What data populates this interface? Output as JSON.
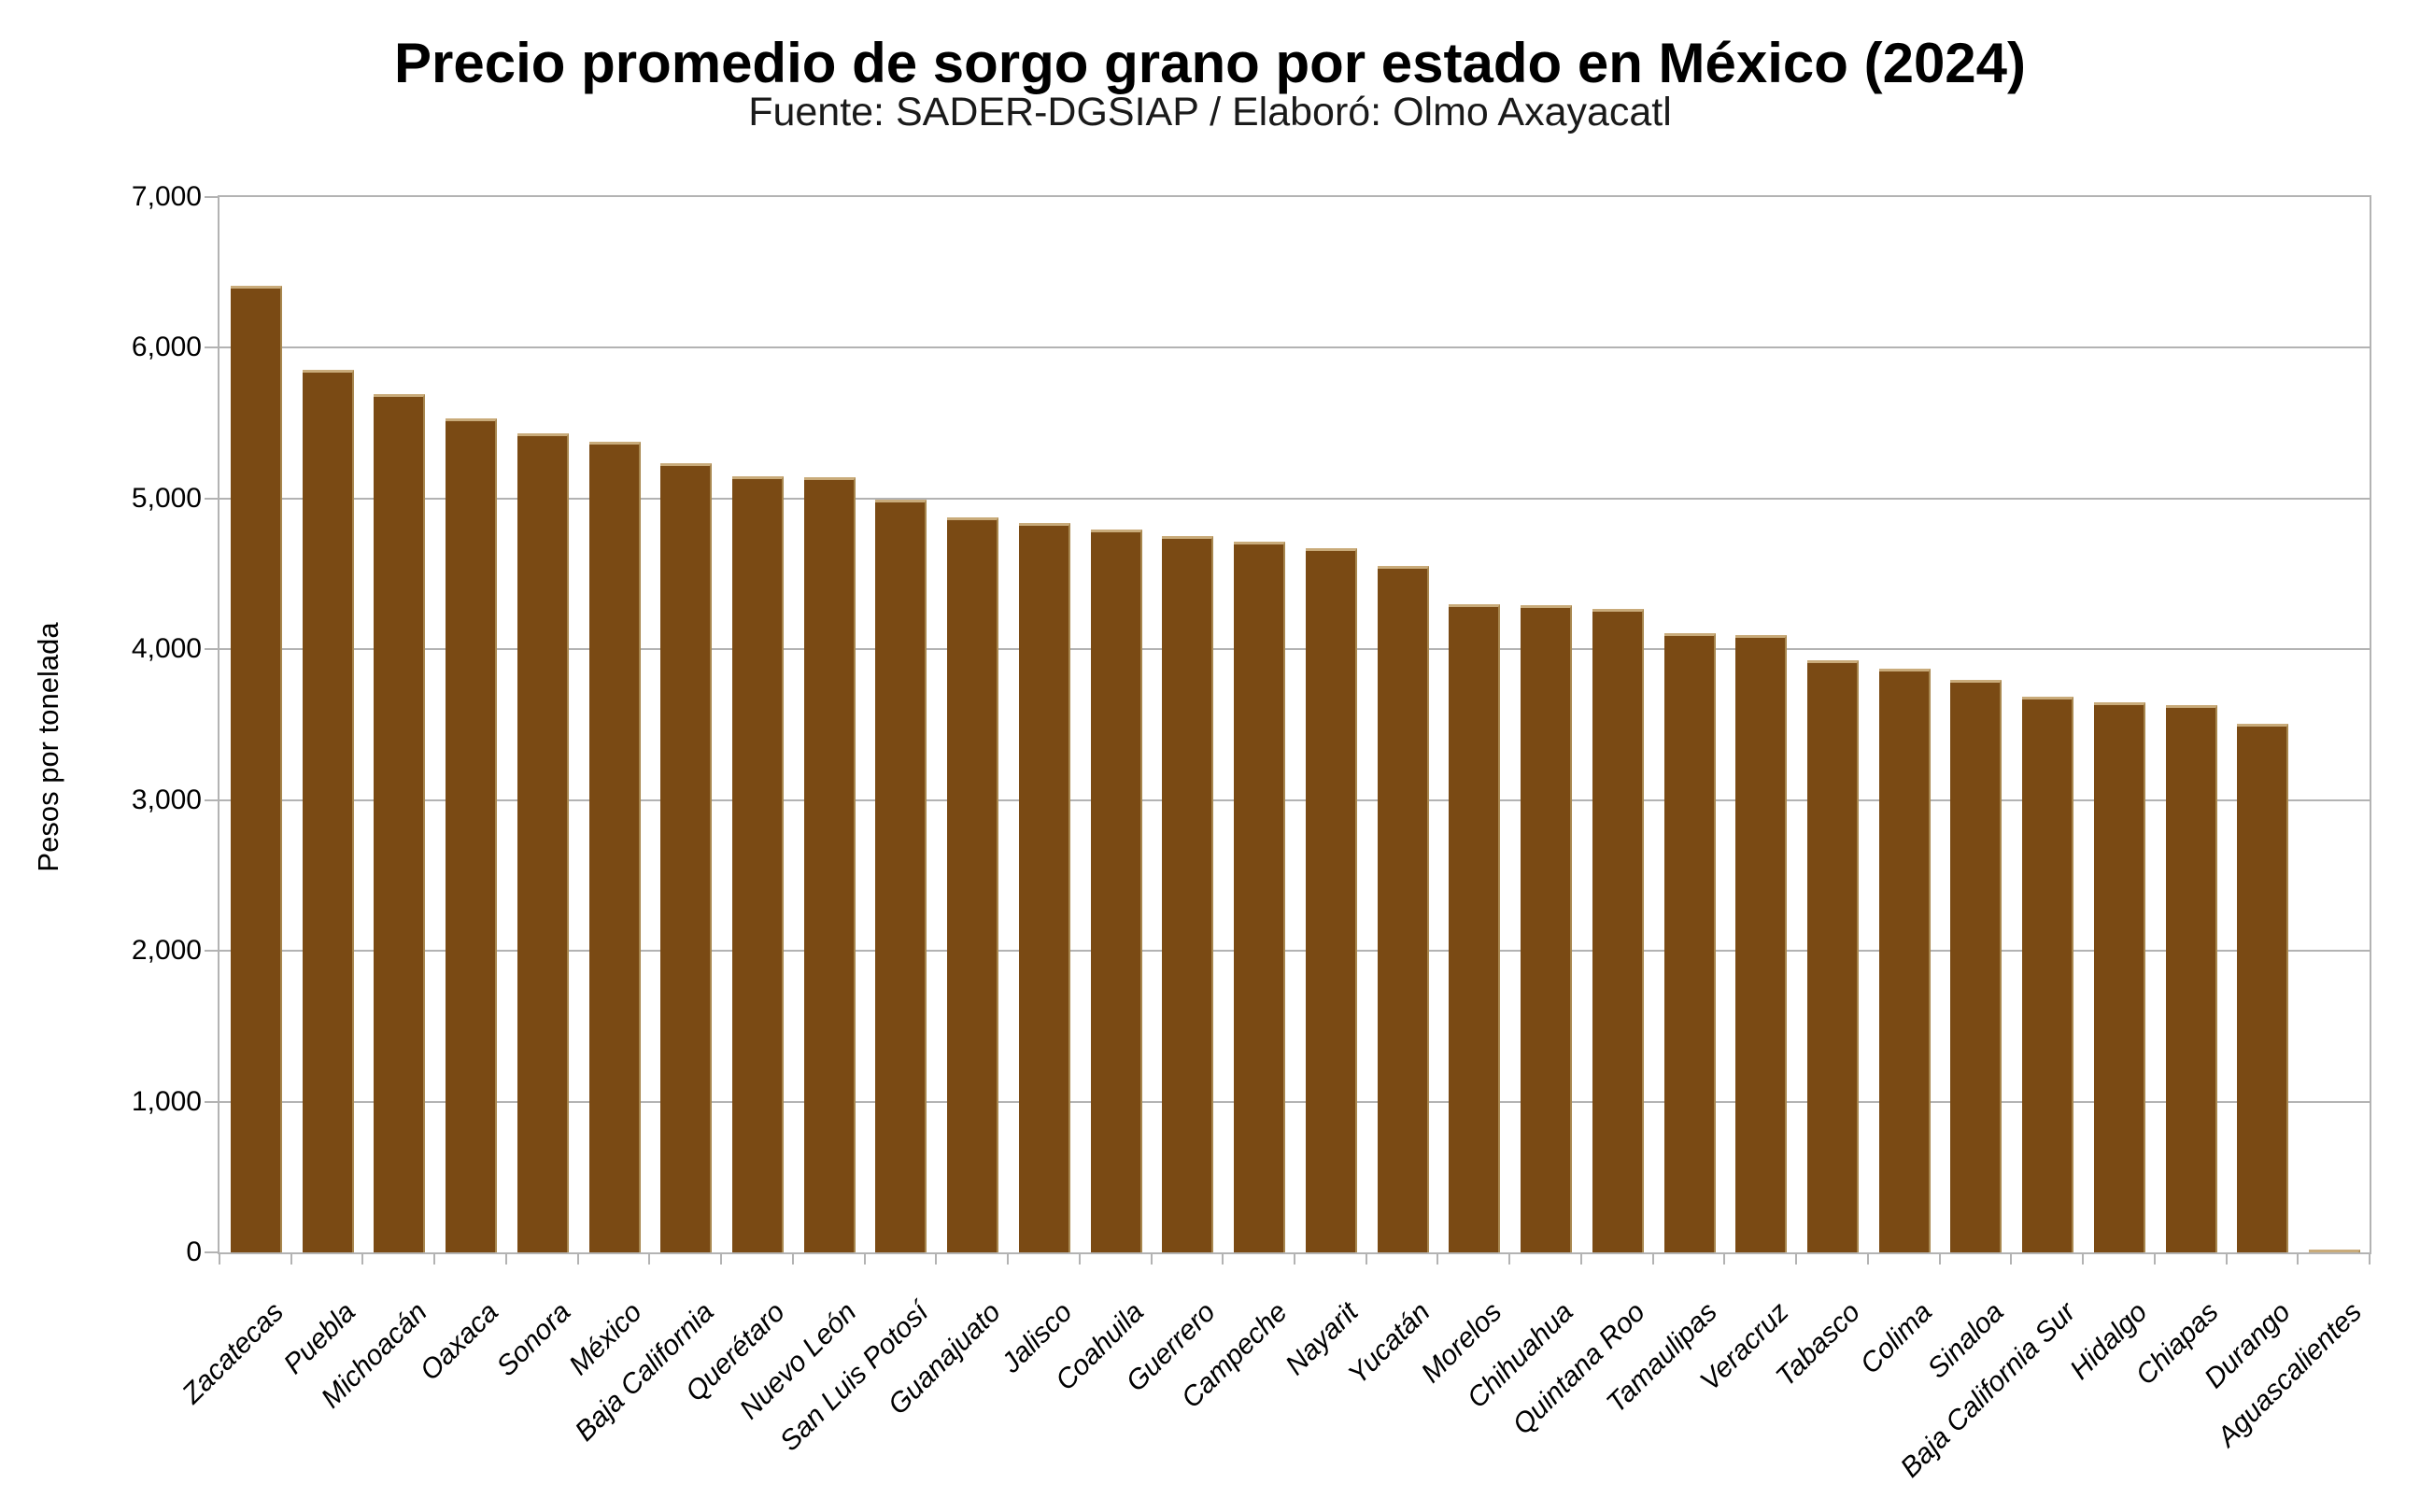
{
  "chart_data": {
    "type": "bar",
    "title": "Precio promedio de sorgo grano por estado en México (2024)",
    "subtitle": "Fuente: SADER-DGSIAP / Elaboró: Olmo Axayacatl",
    "xlabel": "",
    "ylabel": "Pesos por tonelada",
    "ylim": [
      0,
      7000
    ],
    "yticks": [
      0,
      1000,
      2000,
      3000,
      4000,
      5000,
      6000,
      7000
    ],
    "ytick_labels": [
      "0",
      "1,000",
      "2,000",
      "3,000",
      "4,000",
      "5,000",
      "6,000",
      "7,000"
    ],
    "grid": true,
    "legend": false,
    "bar_color": "#7a4a14",
    "bar_edge_color": "#c9ab7a",
    "axis_color": "#b3b3b3",
    "categories": [
      "Zacatecas",
      "Puebla",
      "Michoacán",
      "Oaxaca",
      "Sonora",
      "México",
      "Baja California",
      "Querétaro",
      "Nuevo León",
      "San Luis Potosí",
      "Guanajuato",
      "Jalisco",
      "Coahuila",
      "Guerrero",
      "Campeche",
      "Nayarit",
      "Yucatán",
      "Morelos",
      "Chihuahua",
      "Quintana Roo",
      "Tamaulipas",
      "Veracruz",
      "Tabasco",
      "Colima",
      "Sinaloa",
      "Baja California Sur",
      "Hidalgo",
      "Chiapas",
      "Durango",
      "Aguascalientes"
    ],
    "values": [
      6410,
      5855,
      5695,
      5530,
      5435,
      5380,
      5235,
      5150,
      5140,
      4990,
      4875,
      4840,
      4795,
      4750,
      4715,
      4670,
      4555,
      4300,
      4290,
      4270,
      4105,
      4095,
      3930,
      3870,
      3800,
      3685,
      3650,
      3630,
      3505,
      20
    ]
  }
}
